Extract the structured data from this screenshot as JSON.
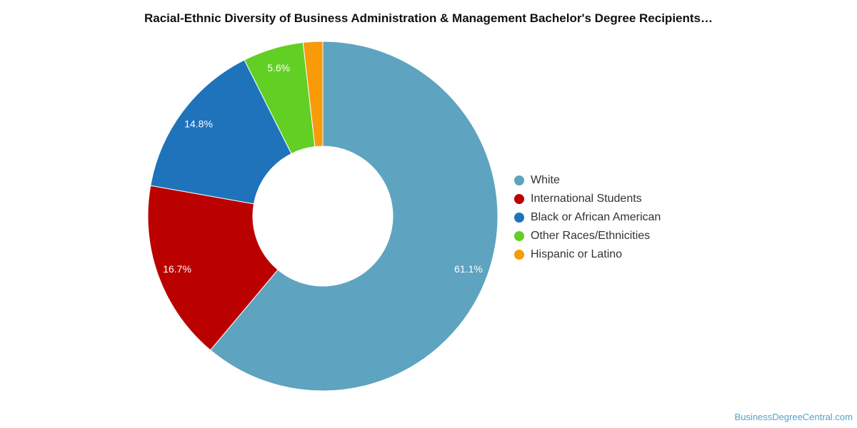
{
  "chart_data": {
    "type": "pie",
    "title": "Racial-Ethnic Diversity of Business Administration & Management Bachelor's Degree Recipients…",
    "categories": [
      "White",
      "International Students",
      "Black or African American",
      "Other Races/Ethnicities",
      "Hispanic or Latino"
    ],
    "values": [
      61.1,
      16.7,
      14.8,
      5.6,
      1.8
    ],
    "labels": [
      "61.1%",
      "16.7%",
      "14.8%",
      "5.6%",
      ""
    ],
    "colors": [
      "#5ea3bf",
      "#bb0000",
      "#1f73bb",
      "#62cf24",
      "#f99a08"
    ],
    "donut": true,
    "legend_position": "right"
  },
  "footer": {
    "credit": "BusinessDegreeCentral.com"
  }
}
